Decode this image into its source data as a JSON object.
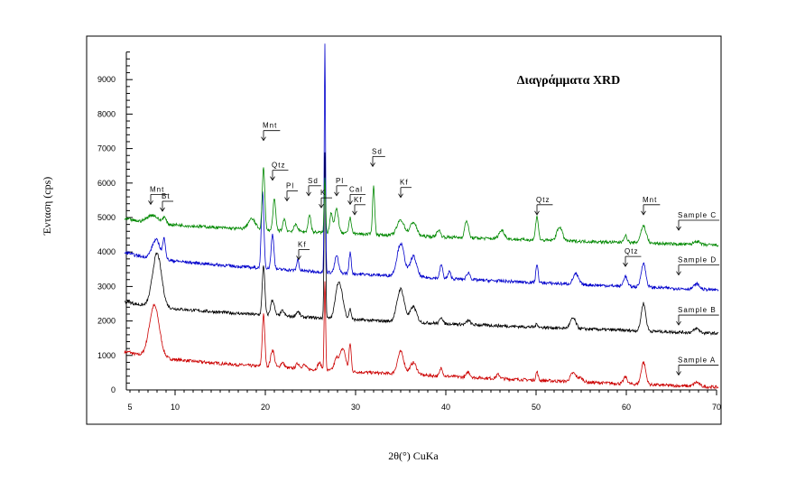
{
  "chart_data": {
    "type": "line",
    "title": "Διαγράμματα XRD",
    "xlabel": "2θ(°) CuKa",
    "ylabel": "Ένταση (cps)",
    "xlim": [
      5,
      70
    ],
    "ylim": [
      0,
      9800
    ],
    "x_ticks": [
      5,
      10,
      20,
      30,
      40,
      50,
      60,
      70
    ],
    "y_ticks": [
      0,
      1000,
      2000,
      3000,
      4000,
      5000,
      6000,
      7000,
      8000,
      9000
    ],
    "grid": false,
    "series": [
      {
        "name": "Sample A",
        "color": "#cc0000",
        "baseline": 1100,
        "end": 80,
        "peaks": [
          [
            7.7,
            1500,
            0.55
          ],
          [
            19.8,
            1500,
            0.14
          ],
          [
            20.8,
            500,
            0.2
          ],
          [
            21.9,
            150,
            0.2
          ],
          [
            23.6,
            150,
            0.2
          ],
          [
            24.3,
            120,
            0.2
          ],
          [
            26.0,
            200,
            0.2
          ],
          [
            26.6,
            2600,
            0.08
          ],
          [
            27.9,
            350,
            0.25
          ],
          [
            28.6,
            650,
            0.3
          ],
          [
            29.4,
            800,
            0.12
          ],
          [
            35.0,
            650,
            0.35
          ],
          [
            36.4,
            350,
            0.35
          ],
          [
            39.5,
            250,
            0.15
          ],
          [
            42.5,
            150,
            0.2
          ],
          [
            45.8,
            120,
            0.2
          ],
          [
            50.1,
            250,
            0.12
          ],
          [
            54.1,
            250,
            0.3
          ],
          [
            54.9,
            120,
            0.3
          ],
          [
            59.9,
            200,
            0.2
          ],
          [
            61.9,
            650,
            0.25
          ],
          [
            67.8,
            120,
            0.3
          ]
        ]
      },
      {
        "name": "Sample B",
        "color": "#000000",
        "baseline": 2550,
        "end": 1640,
        "peaks": [
          [
            8.0,
            1550,
            0.5
          ],
          [
            19.8,
            1450,
            0.14
          ],
          [
            20.8,
            450,
            0.2
          ],
          [
            21.9,
            150,
            0.2
          ],
          [
            23.6,
            150,
            0.2
          ],
          [
            26.6,
            4800,
            0.08
          ],
          [
            27.9,
            450,
            0.25
          ],
          [
            28.3,
            850,
            0.35
          ],
          [
            29.4,
            300,
            0.12
          ],
          [
            35.0,
            950,
            0.4
          ],
          [
            36.4,
            450,
            0.35
          ],
          [
            39.5,
            200,
            0.15
          ],
          [
            42.5,
            120,
            0.2
          ],
          [
            50.1,
            100,
            0.12
          ],
          [
            54.1,
            300,
            0.3
          ],
          [
            61.9,
            800,
            0.25
          ],
          [
            67.8,
            120,
            0.3
          ]
        ]
      },
      {
        "name": "Sample D",
        "color": "#0000cc",
        "baseline": 3970,
        "end": 2900,
        "peaks": [
          [
            7.9,
            550,
            0.45
          ],
          [
            8.8,
            550,
            0.15
          ],
          [
            19.7,
            2200,
            0.14
          ],
          [
            20.8,
            1000,
            0.15
          ],
          [
            23.6,
            320,
            0.12
          ],
          [
            26.6,
            6600,
            0.07
          ],
          [
            27.9,
            500,
            0.2
          ],
          [
            29.4,
            600,
            0.12
          ],
          [
            35.0,
            950,
            0.4
          ],
          [
            36.4,
            600,
            0.35
          ],
          [
            39.5,
            400,
            0.15
          ],
          [
            40.4,
            200,
            0.15
          ],
          [
            42.5,
            200,
            0.2
          ],
          [
            50.1,
            550,
            0.12
          ],
          [
            54.4,
            300,
            0.3
          ],
          [
            59.9,
            300,
            0.2
          ],
          [
            61.9,
            700,
            0.25
          ],
          [
            67.8,
            150,
            0.3
          ]
        ]
      },
      {
        "name": "Sample C",
        "color": "#008800",
        "baseline": 4950,
        "end": 4200,
        "peaks": [
          [
            7.5,
            230,
            0.6
          ],
          [
            8.8,
            180,
            0.2
          ],
          [
            18.5,
            300,
            0.4
          ],
          [
            19.8,
            1800,
            0.14
          ],
          [
            21.0,
            900,
            0.15
          ],
          [
            22.1,
            350,
            0.15
          ],
          [
            23.4,
            200,
            0.2
          ],
          [
            24.9,
            500,
            0.15
          ],
          [
            26.6,
            1600,
            0.08
          ],
          [
            27.3,
            600,
            0.15
          ],
          [
            27.9,
            700,
            0.2
          ],
          [
            29.4,
            450,
            0.15
          ],
          [
            32.0,
            1400,
            0.12
          ],
          [
            35.0,
            450,
            0.4
          ],
          [
            36.4,
            400,
            0.35
          ],
          [
            39.2,
            200,
            0.2
          ],
          [
            42.3,
            500,
            0.2
          ],
          [
            46.2,
            250,
            0.3
          ],
          [
            50.1,
            700,
            0.15
          ],
          [
            52.6,
            400,
            0.3
          ],
          [
            59.9,
            200,
            0.2
          ],
          [
            61.9,
            500,
            0.3
          ],
          [
            67.8,
            100,
            0.3
          ]
        ]
      }
    ],
    "annotations": [
      {
        "text": "Mnt",
        "x": 7.3,
        "y": 5750
      },
      {
        "text": "Bt",
        "x": 8.6,
        "y": 5550
      },
      {
        "text": "Mnt",
        "x": 19.8,
        "y": 7600
      },
      {
        "text": "Qtz",
        "x": 20.8,
        "y": 6450
      },
      {
        "text": "Pl",
        "x": 22.4,
        "y": 5850
      },
      {
        "text": "Sd",
        "x": 24.8,
        "y": 6000
      },
      {
        "text": "K",
        "x": 26.2,
        "y": 5650
      },
      {
        "text": "Pl",
        "x": 27.9,
        "y": 6000
      },
      {
        "text": "Cal",
        "x": 29.4,
        "y": 5750
      },
      {
        "text": "Kf",
        "x": 29.9,
        "y": 5450
      },
      {
        "text": "Sd",
        "x": 31.9,
        "y": 6850
      },
      {
        "text": "Kf",
        "x": 35.0,
        "y": 5950
      },
      {
        "text": "Kf",
        "x": 23.7,
        "y": 4150
      },
      {
        "text": "Qtz",
        "x": 50.1,
        "y": 5450
      },
      {
        "text": "Mnt",
        "x": 61.9,
        "y": 5450
      },
      {
        "text": "Qtz",
        "x": 59.9,
        "y": 3950
      },
      {
        "text": "Sample C",
        "x": 65.8,
        "y": 5000
      },
      {
        "text": "Sample D",
        "x": 65.8,
        "y": 3700
      },
      {
        "text": "Sample B",
        "x": 65.8,
        "y": 2250
      },
      {
        "text": "Sample A",
        "x": 65.8,
        "y": 800
      }
    ]
  }
}
